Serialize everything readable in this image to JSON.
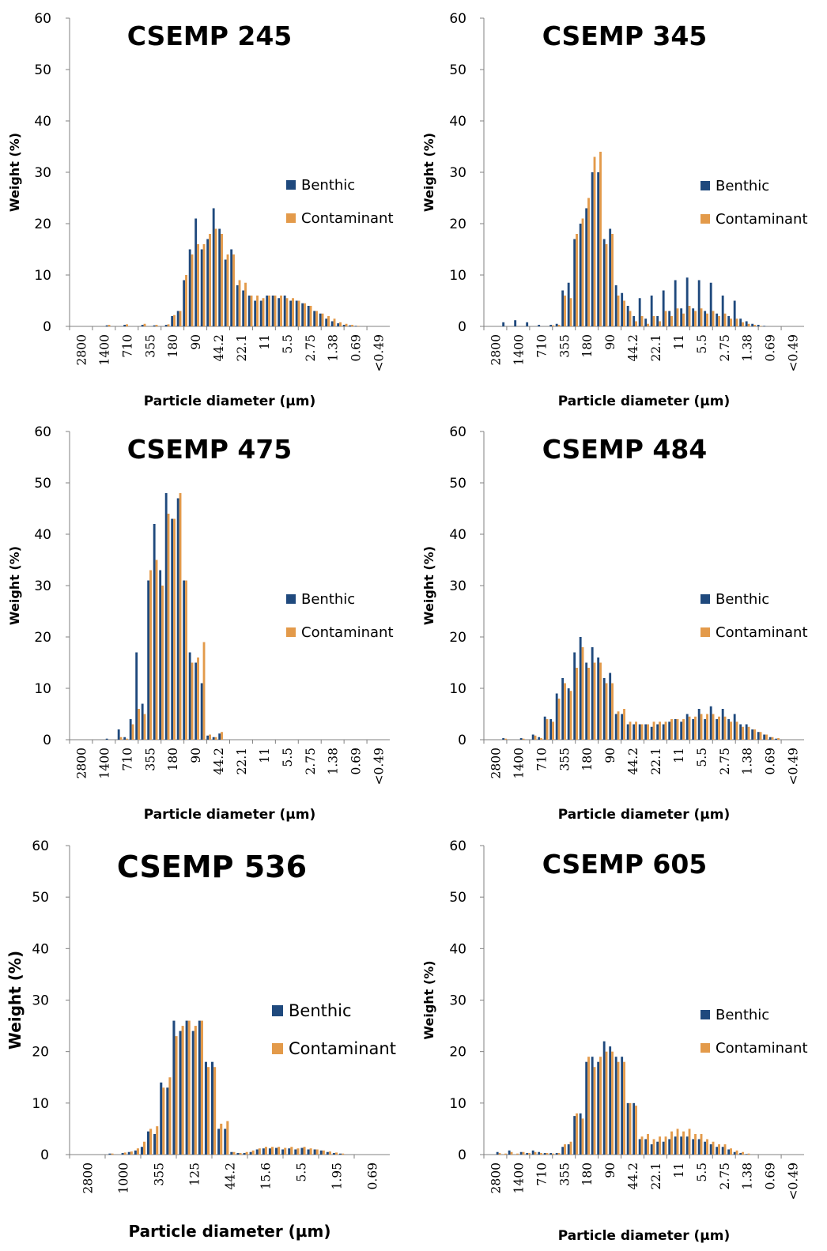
{
  "legend": {
    "benthic_label": "Benthic",
    "contaminant_label": "Contaminant",
    "benthic_color": "#1F497D",
    "contaminant_color": "#E39A4A"
  },
  "chart_data": [
    {
      "type": "bar",
      "title": "CSEMP 245",
      "xlabel": "Particle diameter (µm)",
      "ylabel": "Weight (%)",
      "ylim": [
        0,
        60
      ],
      "yticks": [
        0,
        10,
        20,
        30,
        40,
        50,
        60
      ],
      "xtick_labels": [
        "2800",
        "1400",
        "710",
        "355",
        "180",
        "90",
        "44.2",
        "22.1",
        "11",
        "5.5",
        "2.75",
        "1.38",
        "0.69",
        "<0.49"
      ],
      "series": [
        {
          "name": "Benthic",
          "values": [
            0,
            0,
            0,
            0,
            0,
            0,
            0.2,
            0,
            0,
            0.3,
            0,
            0,
            0.3,
            0,
            0.2,
            0,
            0.3,
            2,
            3,
            9,
            15,
            21,
            15,
            17,
            23,
            19,
            13,
            15,
            8,
            7,
            6,
            5,
            5,
            6,
            6,
            5.5,
            6,
            5,
            5,
            4.5,
            4,
            3,
            2.5,
            1.5,
            1,
            0.6,
            0.3,
            0.2,
            0.1,
            0,
            0,
            0,
            0,
            0
          ]
        },
        {
          "name": "Contaminant",
          "values": [
            0,
            0,
            0,
            0,
            0,
            0,
            0.3,
            0,
            0,
            0.4,
            0,
            0,
            0.5,
            0,
            0.3,
            0,
            0.4,
            2.2,
            3,
            10,
            14,
            16,
            16,
            18,
            19,
            18,
            14,
            14,
            9,
            8.5,
            6,
            6,
            5.5,
            6,
            6,
            6,
            5.5,
            5.5,
            5,
            4.5,
            4,
            3,
            2.5,
            2,
            1.5,
            0.8,
            0.5,
            0.3,
            0.1,
            0,
            0,
            0,
            0,
            0
          ]
        }
      ],
      "legend_position": "right"
    },
    {
      "type": "bar",
      "title": "CSEMP 345",
      "xlabel": "Particle diameter (µm)",
      "ylabel": "Weight (%)",
      "ylim": [
        0,
        60
      ],
      "yticks": [
        0,
        10,
        20,
        30,
        40,
        50,
        60
      ],
      "xtick_labels": [
        "2800",
        "1400",
        "710",
        "355",
        "180",
        "90",
        "44.2",
        "22.1",
        "11",
        "5.5",
        "2.75",
        "1.38",
        "0.69",
        "<0.49"
      ],
      "series": [
        {
          "name": "Benthic",
          "values": [
            0,
            0,
            0,
            0.8,
            0,
            1.2,
            0,
            0.8,
            0,
            0.3,
            0,
            0.3,
            0.5,
            7,
            8.5,
            17,
            20,
            23,
            30,
            30,
            17,
            19,
            8,
            6.5,
            4,
            2,
            5.5,
            1.5,
            6,
            2,
            7,
            3,
            9,
            3.5,
            9.5,
            3.5,
            9,
            3,
            8.5,
            2.5,
            6,
            2,
            5,
            1.5,
            1,
            0.5,
            0.3,
            0.1,
            0,
            0,
            0,
            0,
            0,
            0
          ]
        },
        {
          "name": "Contaminant",
          "values": [
            0,
            0,
            0,
            0,
            0,
            0,
            0,
            0,
            0,
            0,
            0,
            0.2,
            0.3,
            6,
            5.5,
            18,
            21,
            25,
            33,
            34,
            16,
            18,
            6,
            5,
            3,
            1,
            2,
            0.5,
            2,
            1,
            3,
            2,
            3.5,
            2.5,
            4,
            3,
            3.5,
            2.5,
            3,
            2,
            2.5,
            1.5,
            1.5,
            0.8,
            0.5,
            0.3,
            0.1,
            0,
            0,
            0,
            0,
            0,
            0,
            0
          ]
        }
      ],
      "legend_position": "right"
    },
    {
      "type": "bar",
      "title": "CSEMP 475",
      "xlabel": "Particle diameter (µm)",
      "ylabel": "Weight (%)",
      "ylim": [
        0,
        60
      ],
      "yticks": [
        0,
        10,
        20,
        30,
        40,
        50,
        60
      ],
      "xtick_labels": [
        "2800",
        "1400",
        "710",
        "355",
        "180",
        "90",
        "44.2",
        "22.1",
        "11",
        "5.5",
        "2.75",
        "1.38",
        "0.69",
        "<0.49"
      ],
      "series": [
        {
          "name": "Benthic",
          "values": [
            0,
            0,
            0,
            0,
            0,
            0,
            0.2,
            0,
            2,
            0.5,
            4,
            17,
            7,
            31,
            42,
            33,
            48,
            43,
            47,
            31,
            17,
            15,
            11,
            0.8,
            0.5,
            1.2,
            0,
            0,
            0,
            0,
            0,
            0,
            0,
            0,
            0,
            0,
            0,
            0,
            0,
            0,
            0,
            0,
            0,
            0,
            0,
            0,
            0,
            0,
            0,
            0,
            0,
            0,
            0,
            0
          ]
        },
        {
          "name": "Contaminant",
          "values": [
            0,
            0,
            0,
            0,
            0,
            0,
            0,
            0,
            0.5,
            0.2,
            3,
            6,
            5,
            33,
            35,
            30,
            44,
            43,
            48,
            31,
            15,
            16,
            19,
            1,
            0.5,
            1.5,
            0,
            0,
            0,
            0,
            0,
            0,
            0,
            0,
            0,
            0,
            0,
            0,
            0,
            0,
            0,
            0,
            0,
            0,
            0,
            0,
            0,
            0,
            0,
            0,
            0,
            0,
            0,
            0
          ]
        }
      ],
      "legend_position": "right"
    },
    {
      "type": "bar",
      "title": "CSEMP 484",
      "xlabel": "Particle diameter (µm)",
      "ylabel": "Weight (%)",
      "ylim": [
        0,
        60
      ],
      "yticks": [
        0,
        10,
        20,
        30,
        40,
        50,
        60
      ],
      "xtick_labels": [
        "2800",
        "1400",
        "710",
        "355",
        "180",
        "90",
        "44.2",
        "22.1",
        "11",
        "5.5",
        "2.75",
        "1.38",
        "0.69",
        "<0.49"
      ],
      "series": [
        {
          "name": "Benthic",
          "values": [
            0,
            0,
            0,
            0.3,
            0,
            0,
            0.3,
            0,
            1,
            0.5,
            4.5,
            4,
            9,
            12,
            10,
            17,
            20,
            15,
            18,
            16,
            12,
            13,
            5,
            5,
            3,
            3,
            3,
            3,
            2.5,
            3,
            3,
            3.5,
            4,
            3.5,
            5,
            4,
            6,
            4,
            6.5,
            4,
            6,
            4,
            5,
            3,
            3,
            2,
            1.5,
            1,
            0.5,
            0.2,
            0,
            0,
            0,
            0
          ]
        },
        {
          "name": "Contaminant",
          "values": [
            0,
            0,
            0,
            0.2,
            0,
            0,
            0.2,
            0,
            0.8,
            0.3,
            4,
            3.5,
            8,
            11,
            9.5,
            14,
            18,
            14,
            15,
            15,
            11,
            11,
            5.5,
            6,
            3.5,
            3.5,
            3,
            3,
            3.5,
            3.5,
            3.5,
            4,
            4,
            4,
            4.5,
            4.5,
            5,
            5,
            5,
            4.5,
            4.5,
            3.5,
            3.5,
            2.5,
            2.5,
            2,
            1.5,
            1,
            0.5,
            0.3,
            0,
            0,
            0,
            0
          ]
        }
      ],
      "legend_position": "right"
    },
    {
      "type": "bar",
      "title": "CSEMP 536",
      "xlabel": "Particle diameter (µm)",
      "ylabel": "Weight (%)",
      "ylim": [
        0,
        60
      ],
      "yticks": [
        0,
        10,
        20,
        30,
        40,
        50,
        60
      ],
      "xtick_labels": [
        "2800",
        "1000",
        "355",
        "125",
        "44.2",
        "15.6",
        "5.5",
        "1.95",
        "0.69"
      ],
      "series": [
        {
          "name": "Benthic",
          "values": [
            0,
            0,
            0,
            0,
            0,
            0,
            0.2,
            0,
            0.3,
            0.5,
            0.8,
            1.5,
            4.5,
            4,
            14,
            13,
            26,
            24,
            26,
            24,
            26,
            18,
            18,
            5,
            5,
            0.5,
            0.3,
            0.3,
            0.5,
            1,
            1.2,
            1.2,
            1.3,
            1,
            1.2,
            1,
            1.3,
            1,
            1,
            0.8,
            0.5,
            0.3,
            0.2,
            0,
            0,
            0,
            0,
            0,
            0,
            0
          ]
        },
        {
          "name": "Contaminant",
          "values": [
            0,
            0,
            0,
            0,
            0,
            0,
            0.2,
            0,
            0.4,
            0.6,
            1.2,
            2.5,
            5,
            5.5,
            13,
            15,
            23,
            25,
            26,
            25,
            26,
            17,
            17,
            6,
            6.5,
            0.5,
            0.3,
            0.5,
            0.8,
            1.2,
            1.5,
            1.5,
            1.5,
            1.3,
            1.5,
            1.2,
            1.5,
            1.2,
            1,
            0.8,
            0.6,
            0.4,
            0.2,
            0,
            0,
            0,
            0,
            0,
            0,
            0
          ]
        }
      ],
      "legend_position": "right"
    },
    {
      "type": "bar",
      "title": "CSEMP 605",
      "xlabel": "Particle diameter (µm)",
      "ylabel": "Weight (%)",
      "ylim": [
        0,
        60
      ],
      "yticks": [
        0,
        10,
        20,
        30,
        40,
        50,
        60
      ],
      "xtick_labels": [
        "2800",
        "1400",
        "710",
        "355",
        "180",
        "90",
        "44.2",
        "22.1",
        "11",
        "5.5",
        "2.75",
        "1.38",
        "0.69",
        "<0.49"
      ],
      "series": [
        {
          "name": "Benthic",
          "values": [
            0,
            0,
            0.5,
            0,
            0.8,
            0,
            0.5,
            0.3,
            0.8,
            0.5,
            0.3,
            0.3,
            0.3,
            1.5,
            2,
            7.5,
            8,
            18,
            19,
            18,
            22,
            21,
            19,
            19,
            10,
            10,
            3,
            3,
            2,
            2.5,
            2.5,
            3,
            3.5,
            3.5,
            3.5,
            3,
            3,
            2.5,
            2,
            1.5,
            1.5,
            1,
            0.5,
            0.3,
            0.1,
            0,
            0,
            0,
            0,
            0,
            0,
            0,
            0,
            0
          ]
        },
        {
          "name": "Contaminant",
          "values": [
            0,
            0,
            0.3,
            0.2,
            0.5,
            0.2,
            0.5,
            0.3,
            0.5,
            0.3,
            0.3,
            0.2,
            0.3,
            2,
            2.5,
            8,
            7,
            19,
            17,
            19,
            20,
            20,
            18,
            18,
            10,
            9.5,
            3.5,
            4,
            3,
            3.5,
            3.5,
            4.5,
            5,
            4.5,
            5,
            4,
            4,
            3,
            2.5,
            2,
            2,
            1.2,
            0.8,
            0.5,
            0.2,
            0,
            0,
            0,
            0,
            0,
            0,
            0,
            0,
            0
          ]
        }
      ],
      "legend_position": "right"
    }
  ]
}
